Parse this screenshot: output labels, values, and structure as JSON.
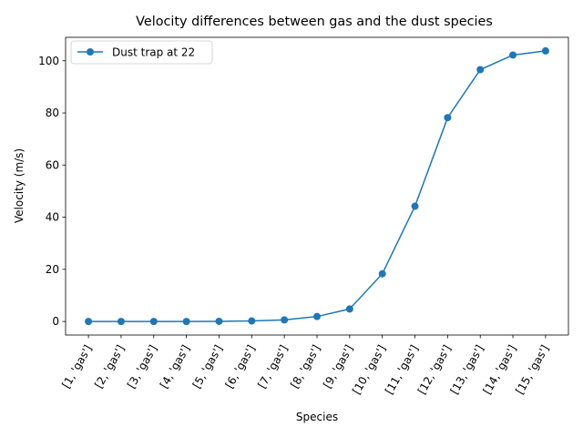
{
  "chart_data": {
    "type": "line",
    "title": "Velocity differences between gas and the dust species",
    "xlabel": "Species",
    "ylabel": "Velocity (m/s)",
    "categories": [
      "[1, 'gas']",
      "[2, 'gas']",
      "[3, 'gas']",
      "[4, 'gas']",
      "[5, 'gas']",
      "[6, 'gas']",
      "[7, 'gas']",
      "[8, 'gas']",
      "[9, 'gas']",
      "[10, 'gas']",
      "[11, 'gas']",
      "[12, 'gas']",
      "[13, 'gas']",
      "[14, 'gas']",
      "[15, 'gas']"
    ],
    "series": [
      {
        "name": "Dust trap at 22",
        "values": [
          0.0,
          0.0,
          0.0,
          0.0,
          0.05,
          0.2,
          0.6,
          1.9,
          4.8,
          18.3,
          44.2,
          78.2,
          96.6,
          102.2,
          103.8
        ],
        "color": "#1f77b4"
      }
    ],
    "ylim": [
      -5.2,
      109.0
    ],
    "yticks": [
      0,
      20,
      40,
      60,
      80,
      100
    ],
    "grid": false,
    "legend_position": "upper-left",
    "marker": "circle"
  }
}
